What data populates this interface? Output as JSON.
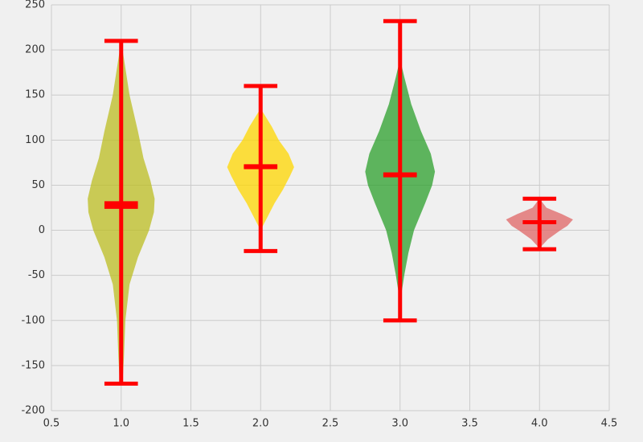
{
  "chart_data": {
    "type": "violin",
    "grid": true,
    "stat_color": "#ff0000",
    "xlim": [
      0.5,
      4.5
    ],
    "xticks": [
      0.5,
      {
        "value": 1,
        "label": "1.0"
      },
      1.5,
      {
        "value": 2,
        "label": "2.0"
      },
      2.5,
      {
        "value": 3,
        "label": "3.0"
      },
      3.5,
      {
        "value": 4,
        "label": "4.0"
      },
      4.5
    ],
    "ylim": [
      -200,
      250
    ],
    "yticks": [
      -200,
      -150,
      -100,
      -50,
      0,
      50,
      100,
      150,
      200,
      250
    ],
    "series": [
      {
        "position": 1,
        "color": "#bcbd22",
        "min": -170,
        "max": 210,
        "mean": 30,
        "median": 26,
        "profile": {
          "y": [
            -170,
            -140,
            -100,
            -60,
            -30,
            0,
            20,
            35,
            55,
            80,
            110,
            150,
            180,
            210
          ],
          "half_width": [
            0.01,
            0.02,
            0.03,
            0.06,
            0.12,
            0.2,
            0.235,
            0.24,
            0.21,
            0.16,
            0.12,
            0.06,
            0.03,
            0.0
          ]
        }
      },
      {
        "position": 2,
        "color": "#ffd700",
        "min": -23,
        "max": 160,
        "mean": 70,
        "median": 71,
        "profile": {
          "y": [
            0,
            15,
            30,
            45,
            60,
            70,
            85,
            100,
            115,
            135
          ],
          "half_width": [
            0.0,
            0.05,
            0.1,
            0.16,
            0.21,
            0.24,
            0.2,
            0.13,
            0.08,
            0.0
          ]
        }
      },
      {
        "position": 3,
        "color": "#2ca02c",
        "min": -100,
        "max": 232,
        "mean": 61,
        "median": 62,
        "profile": {
          "y": [
            -75,
            -50,
            -25,
            0,
            30,
            50,
            65,
            85,
            110,
            140,
            170,
            190
          ],
          "half_width": [
            0.005,
            0.03,
            0.06,
            0.1,
            0.18,
            0.23,
            0.25,
            0.22,
            0.15,
            0.08,
            0.03,
            0.0
          ]
        }
      },
      {
        "position": 4,
        "color": "#e06666",
        "min": -21,
        "max": 35,
        "mean": 9,
        "median": 9,
        "profile": {
          "y": [
            -20,
            -10,
            0,
            5,
            12,
            18,
            25,
            35
          ],
          "half_width": [
            0.0,
            0.06,
            0.15,
            0.2,
            0.24,
            0.16,
            0.05,
            0.0
          ]
        }
      }
    ]
  }
}
